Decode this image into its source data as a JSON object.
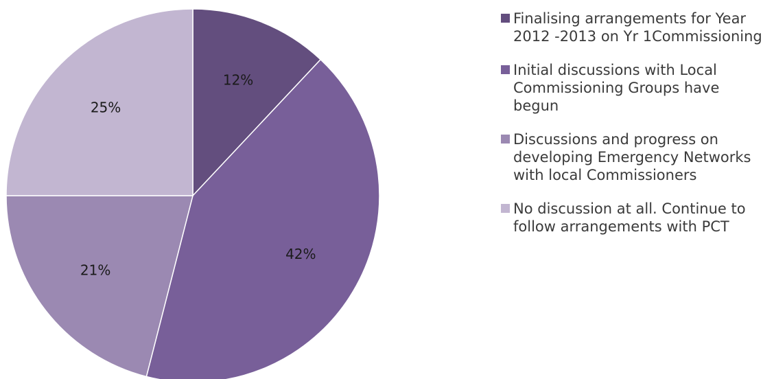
{
  "chart_data": {
    "type": "pie",
    "title": "",
    "slices": [
      {
        "label": "Finalising arrangements for Year 2012 -2013 on Yr 1Commissioning",
        "value": 12,
        "display": "12%",
        "color": "#634e7e"
      },
      {
        "label": "Initial discussions with Local Commissioning Groups have begun",
        "value": 42,
        "display": "42%",
        "color": "#785f99"
      },
      {
        "label": "Discussions and progress on developing Emergency Networks with local Commissioners",
        "value": 21,
        "display": "21%",
        "color": "#9b89b2"
      },
      {
        "label": "No discussion at all. Continue to follow arrangements with PCT",
        "value": 25,
        "display": "25%",
        "color": "#c2b6d1"
      }
    ],
    "start_angle": "12 o'clock",
    "direction": "clockwise",
    "legend_position": "right"
  }
}
